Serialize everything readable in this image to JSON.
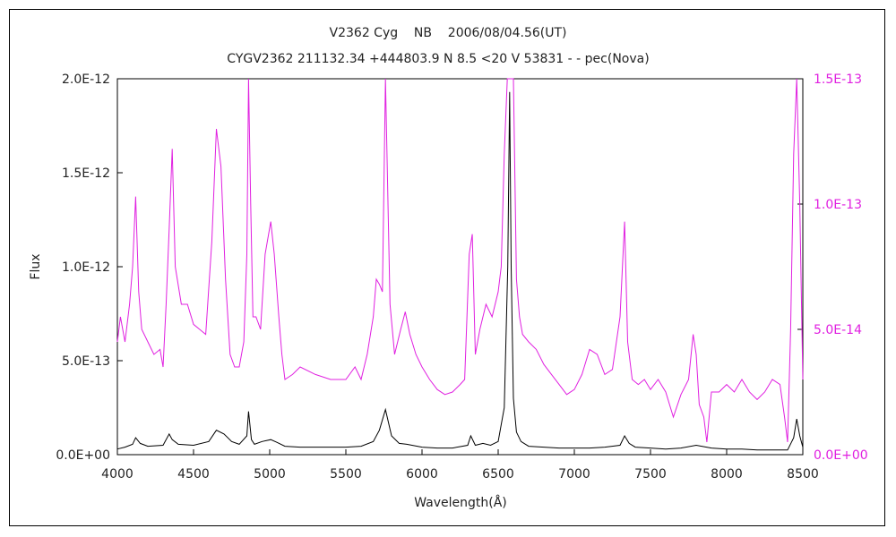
{
  "chart_data": {
    "type": "line",
    "title": "V2362 Cyg    NB    2006/08/04.56(UT)",
    "subtitle": "CYGV2362 211132.34 +444803.9 N 8.5 <20 V 53831 - - pec(Nova)",
    "xlabel": "Wavelength(Å)",
    "ylabel": "Flux",
    "xlim": [
      4000,
      8500
    ],
    "ylim_left": [
      0,
      2e-12
    ],
    "ylim_right": [
      0,
      1.5e-13
    ],
    "x_ticks": [
      "4000",
      "4500",
      "5000",
      "5500",
      "6000",
      "6500",
      "7000",
      "7500",
      "8000",
      "8500"
    ],
    "y_ticks_left": [
      "0.0E+00",
      "5.0E-13",
      "1.0E-12",
      "1.5E-12",
      "2.0E-12"
    ],
    "y_ticks_right": [
      "0.0E+00",
      "5.0E-14",
      "1.0E-13",
      "1.5E-13"
    ],
    "grid": false,
    "colors": {
      "left_series": "#000000",
      "right_series": "#e020e0",
      "axis": "#000000"
    },
    "series": [
      {
        "axis": "left",
        "x": [
          4000,
          4050,
          4100,
          4120,
          4150,
          4200,
          4300,
          4340,
          4360,
          4400,
          4500,
          4600,
          4650,
          4700,
          4750,
          4800,
          4850,
          4861,
          4880,
          4900,
          4950,
          5007,
          5050,
          5100,
          5200,
          5300,
          5400,
          5500,
          5600,
          5680,
          5720,
          5760,
          5800,
          5850,
          5900,
          6000,
          6100,
          6200,
          6300,
          6320,
          6350,
          6400,
          6450,
          6500,
          6540,
          6563,
          6575,
          6585,
          6600,
          6620,
          6650,
          6700,
          6800,
          6900,
          7000,
          7100,
          7200,
          7300,
          7330,
          7360,
          7400,
          7500,
          7600,
          7700,
          7800,
          7900,
          8000,
          8100,
          8200,
          8300,
          8350,
          8400,
          8440,
          8460,
          8480,
          8500
        ],
        "y": [
          3e-14,
          4e-14,
          5.5e-14,
          9e-14,
          6e-14,
          4.5e-14,
          5e-14,
          1.1e-13,
          8e-14,
          5.5e-14,
          5e-14,
          7e-14,
          1.3e-13,
          1.1e-13,
          7e-14,
          5.5e-14,
          1e-13,
          2.3e-13,
          8e-14,
          5.5e-14,
          7e-14,
          8e-14,
          6.5e-14,
          4.5e-14,
          4e-14,
          4e-14,
          4e-14,
          4e-14,
          4.5e-14,
          7e-14,
          1.3e-13,
          2.4e-13,
          1e-13,
          6e-14,
          5.5e-14,
          4e-14,
          3.5e-14,
          3.5e-14,
          5e-14,
          1e-13,
          5e-14,
          6e-14,
          5e-14,
          7e-14,
          2.5e-13,
          1e-12,
          1.93e-12,
          1e-12,
          3e-13,
          1.2e-13,
          7e-14,
          4.5e-14,
          4e-14,
          3.5e-14,
          3.5e-14,
          3.5e-14,
          4e-14,
          5e-14,
          1e-13,
          6e-14,
          4e-14,
          3.5e-14,
          3e-14,
          3.5e-14,
          5e-14,
          3.5e-14,
          3e-14,
          3e-14,
          2.5e-14,
          2.5e-14,
          2.5e-14,
          2.5e-14,
          9e-14,
          1.9e-13,
          1e-13,
          4e-14
        ]
      },
      {
        "axis": "right",
        "x": [
          4000,
          4020,
          4050,
          4080,
          4100,
          4120,
          4140,
          4160,
          4200,
          4240,
          4280,
          4300,
          4320,
          4340,
          4360,
          4380,
          4420,
          4460,
          4500,
          4540,
          4580,
          4620,
          4650,
          4680,
          4710,
          4740,
          4770,
          4800,
          4830,
          4850,
          4861,
          4875,
          4890,
          4910,
          4940,
          4970,
          5007,
          5030,
          5060,
          5080,
          5100,
          5150,
          5200,
          5300,
          5400,
          5500,
          5560,
          5600,
          5640,
          5680,
          5700,
          5720,
          5740,
          5760,
          5790,
          5820,
          5860,
          5890,
          5920,
          5960,
          6000,
          6050,
          6100,
          6150,
          6200,
          6250,
          6280,
          6310,
          6330,
          6350,
          6380,
          6420,
          6460,
          6500,
          6520,
          6540,
          6560,
          6600,
          6620,
          6640,
          6660,
          6700,
          6750,
          6800,
          6850,
          6900,
          6950,
          7000,
          7050,
          7100,
          7150,
          7200,
          7250,
          7300,
          7330,
          7350,
          7380,
          7420,
          7460,
          7500,
          7550,
          7600,
          7650,
          7700,
          7750,
          7780,
          7800,
          7820,
          7850,
          7870,
          7900,
          7950,
          8000,
          8050,
          8100,
          8150,
          8200,
          8250,
          8300,
          8350,
          8380,
          8400,
          8420,
          8440,
          8460,
          8480,
          8500
        ],
        "y": [
          4.5e-14,
          5.5e-14,
          4.5e-14,
          6e-14,
          7.5e-14,
          1.03e-13,
          6.5e-14,
          5e-14,
          4.5e-14,
          4e-14,
          4.2e-14,
          3.5e-14,
          6e-14,
          9e-14,
          1.22e-13,
          7.5e-14,
          6e-14,
          6e-14,
          5.2e-14,
          5e-14,
          4.8e-14,
          8.5e-14,
          1.3e-13,
          1.15e-13,
          7e-14,
          4e-14,
          3.5e-14,
          3.5e-14,
          4.5e-14,
          8e-14,
          1.6e-13,
          1e-13,
          5.5e-14,
          5.5e-14,
          5e-14,
          8e-14,
          9.3e-14,
          8e-14,
          5.5e-14,
          4e-14,
          3e-14,
          3.2e-14,
          3.5e-14,
          3.2e-14,
          3e-14,
          3e-14,
          3.5e-14,
          3e-14,
          4e-14,
          5.5e-14,
          7e-14,
          6.8e-14,
          6.5e-14,
          1.6e-13,
          6e-14,
          4e-14,
          5e-14,
          5.7e-14,
          4.8e-14,
          4e-14,
          3.5e-14,
          3e-14,
          2.6e-14,
          2.4e-14,
          2.5e-14,
          2.8e-14,
          3e-14,
          8e-14,
          8.8e-14,
          4e-14,
          5e-14,
          6e-14,
          5.5e-14,
          6.5e-14,
          7.5e-14,
          1.2e-13,
          1.6e-13,
          1.6e-13,
          7e-14,
          5.5e-14,
          4.8e-14,
          4.5e-14,
          4.2e-14,
          3.6e-14,
          3.2e-14,
          2.8e-14,
          2.4e-14,
          2.6e-14,
          3.2e-14,
          4.2e-14,
          4e-14,
          3.2e-14,
          3.4e-14,
          5.5e-14,
          9.3e-14,
          4.5e-14,
          3e-14,
          2.8e-14,
          3e-14,
          2.6e-14,
          3e-14,
          2.5e-14,
          1.5e-14,
          2.4e-14,
          3e-14,
          4.8e-14,
          4e-14,
          2e-14,
          1.5e-14,
          5e-15,
          2.5e-14,
          2.5e-14,
          2.8e-14,
          2.5e-14,
          3e-14,
          2.5e-14,
          2.2e-14,
          2.5e-14,
          3e-14,
          2.8e-14,
          1.5e-14,
          5e-15,
          5e-14,
          1.2e-13,
          1.5e-13,
          1e-13,
          3e-14
        ]
      }
    ]
  }
}
